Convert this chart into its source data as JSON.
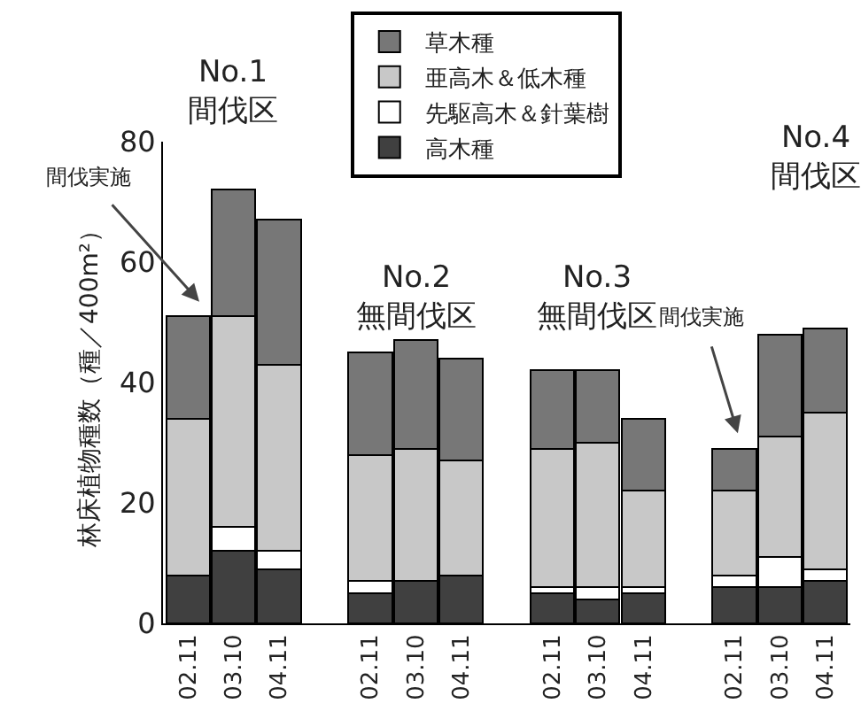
{
  "chart_data": {
    "type": "bar",
    "stacked": true,
    "ylabel": "林床植物種数（種／400m²）",
    "categories": [
      "02.11",
      "03.10",
      "04.11",
      null,
      "02.11",
      "03.10",
      "04.11",
      null,
      "02.11",
      "03.10",
      "04.11",
      null,
      "02.11",
      "03.10",
      "04.11"
    ],
    "series": [
      {
        "name": "高木種",
        "color": "#404040",
        "values": [
          8,
          12,
          9,
          null,
          5,
          7,
          8,
          null,
          5,
          4,
          5,
          null,
          6,
          6,
          7
        ]
      },
      {
        "name": "先駆高木＆針葉樹",
        "color": "#ffffff",
        "values": [
          0,
          4,
          3,
          null,
          2,
          0,
          0,
          null,
          1,
          2,
          1,
          null,
          2,
          5,
          2
        ]
      },
      {
        "name": "亜高木＆低木種",
        "color": "#c8c8c8",
        "values": [
          26,
          35,
          31,
          null,
          21,
          22,
          19,
          null,
          23,
          24,
          16,
          null,
          14,
          20,
          26
        ]
      },
      {
        "name": "草木種",
        "color": "#777777",
        "values": [
          17,
          21,
          24,
          null,
          17,
          18,
          17,
          null,
          13,
          12,
          12,
          null,
          7,
          17,
          14
        ]
      }
    ],
    "ylim": [
      0,
      80
    ],
    "yticks": [
      0,
      20,
      40,
      60,
      80
    ],
    "legend": "top",
    "annotations": [
      "No.1\n間伐区",
      "間伐実施",
      "No.2\n無間伐区",
      "No.3\n無間伐区",
      "間伐実施",
      "No.4\n間伐区"
    ]
  }
}
